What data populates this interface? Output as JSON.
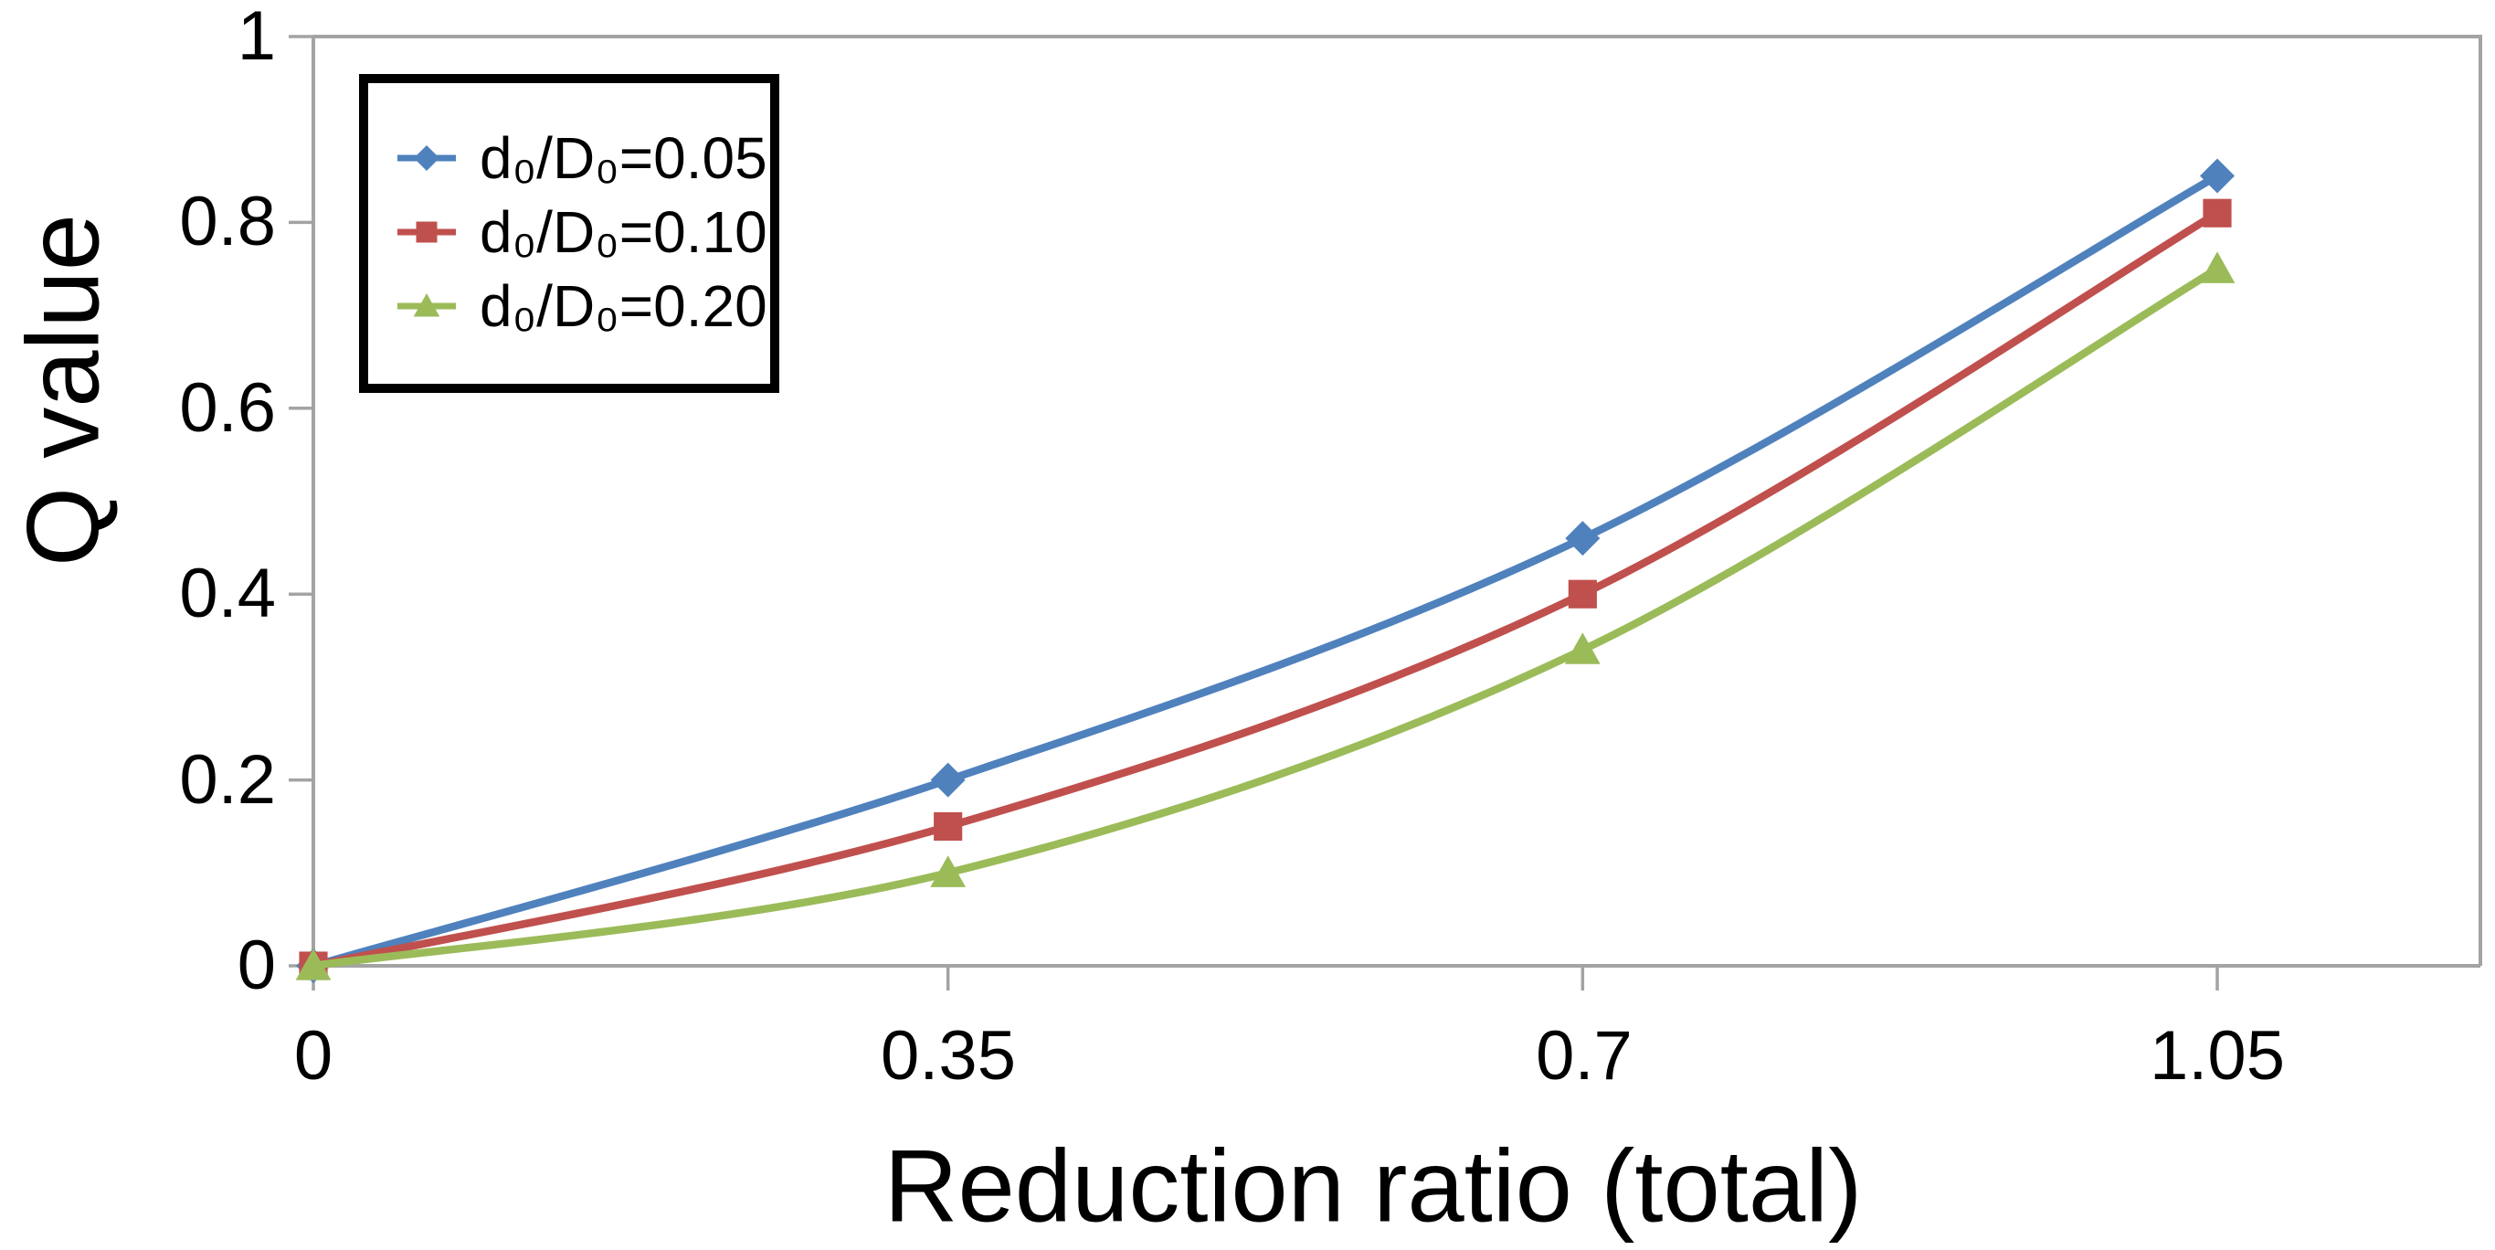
{
  "chart_data": {
    "type": "line",
    "title": "",
    "xlabel": "Reduction ratio (total)",
    "ylabel": "Q value",
    "x": [
      0,
      0.35,
      0.7,
      1.05
    ],
    "x_tick_labels": [
      "0",
      "0.35",
      "0.7",
      "1.05"
    ],
    "y_tick_labels": [
      "1",
      "0.8",
      "0.6",
      "0.4",
      "0.2",
      "0"
    ],
    "y_tick_values": [
      1,
      0.8,
      0.6,
      0.4,
      0.2,
      0
    ],
    "xlim": [
      0,
      1.2
    ],
    "ylim": [
      0,
      1
    ],
    "grid": "off",
    "smoothed_lines": true,
    "legend_position": "top-left",
    "legend_border_color": "#000000",
    "axis_color": "#A3A3A3",
    "background_color": "#FFFFFF",
    "series": [
      {
        "label": "d₀/D₀=0.05",
        "marker": "diamond",
        "color": "#4F81BD",
        "values": [
          0,
          0.2,
          0.46,
          0.85
        ]
      },
      {
        "label": "d₀/D₀=0.10",
        "marker": "square",
        "color": "#C0504D",
        "values": [
          0,
          0.15,
          0.4,
          0.81
        ]
      },
      {
        "label": "d₀/D₀=0.20",
        "marker": "triangle",
        "color": "#9BBB59",
        "values": [
          0,
          0.1,
          0.34,
          0.75
        ]
      }
    ]
  }
}
